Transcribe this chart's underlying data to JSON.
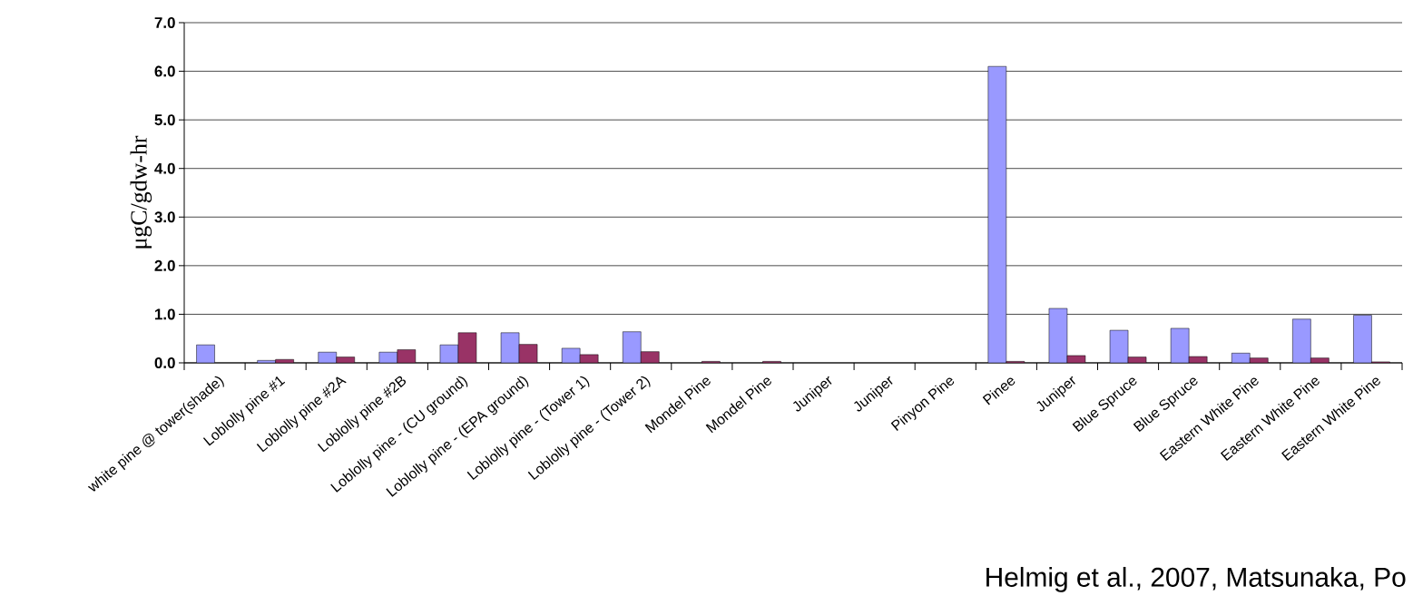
{
  "chart_data": {
    "type": "bar",
    "ylabel": "μgC/gdw-hr",
    "categories": [
      "white pine @ tower(shade)",
      "Loblolly pine  #1",
      "Loblolly pine  #2A",
      "Loblolly pine  #2B",
      "Loblolly pine - (CU ground)",
      "Loblolly pine - (EPA ground)",
      "Loblolly pine - (Tower 1)",
      "Loblolly pine - (Tower 2)",
      "Mondel Pine",
      "Mondel Pine",
      "Juniper",
      "Juniper",
      "Pinyon Pine",
      "Pinee",
      "Juniper",
      "Blue Spruce",
      "Blue Spruce",
      "Eastern White Pine",
      "Eastern White Pine",
      "Eastern White Pine"
    ],
    "series": [
      {
        "color": "#9999ff",
        "values": [
          0.37,
          0.05,
          0.22,
          0.22,
          0.37,
          0.62,
          0.3,
          0.64,
          null,
          null,
          null,
          null,
          null,
          6.1,
          1.12,
          0.67,
          0.71,
          0.2,
          0.9,
          0.98
        ]
      },
      {
        "color": "#993366",
        "values": [
          null,
          0.07,
          0.12,
          0.27,
          0.62,
          0.38,
          0.17,
          0.23,
          0.03,
          0.03,
          null,
          null,
          null,
          0.03,
          0.15,
          0.12,
          0.13,
          0.1,
          0.1,
          0.02
        ]
      }
    ],
    "ylim": [
      0,
      7
    ],
    "yticks": [
      {
        "value": 0,
        "label": "0.0"
      },
      {
        "value": 1,
        "label": "1.0"
      },
      {
        "value": 2,
        "label": "2.0"
      },
      {
        "value": 3,
        "label": "3.0"
      },
      {
        "value": 4,
        "label": "4.0"
      },
      {
        "value": 5,
        "label": "5.0"
      },
      {
        "value": 6,
        "label": "6.0"
      },
      {
        "value": 7,
        "label": "7.0"
      }
    ],
    "grid": "y",
    "annotations": [
      "Helmig et al., 2007, Matsunaka, Po"
    ]
  }
}
